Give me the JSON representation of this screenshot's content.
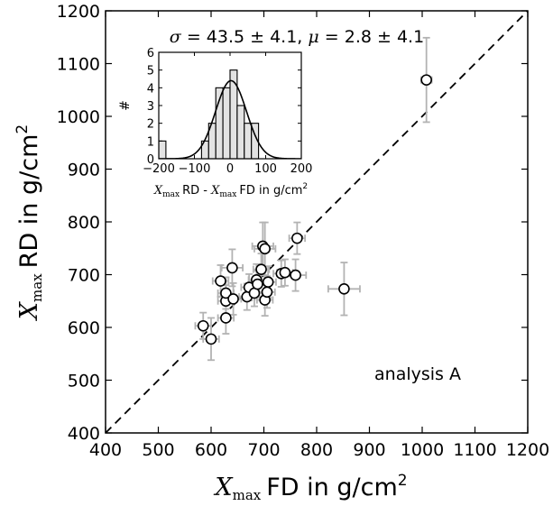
{
  "chart_data": [
    {
      "type": "scatter",
      "xlabel": {
        "symbol": "X",
        "sub": "max",
        "rest": "FD in g/cm",
        "sup": "2"
      },
      "ylabel": {
        "symbol": "X",
        "sub": "max",
        "rest": "RD in g/cm",
        "sup": "2"
      },
      "xlim": [
        400,
        1200
      ],
      "ylim": [
        400,
        1200
      ],
      "xticks": [
        "400",
        "500",
        "600",
        "700",
        "800",
        "900",
        "1000",
        "1100",
        "1200"
      ],
      "yticks": [
        "400",
        "500",
        "600",
        "700",
        "800",
        "900",
        "1000",
        "1100",
        "1200"
      ],
      "reference_line": "y = x (dashed)",
      "annotation": "analysis A",
      "points": [
        {
          "x": 585,
          "y": 603,
          "xerr": 15,
          "yerr": 25
        },
        {
          "x": 600,
          "y": 578,
          "xerr": 15,
          "yerr": 40
        },
        {
          "x": 618,
          "y": 688,
          "xerr": 15,
          "yerr": 30
        },
        {
          "x": 628,
          "y": 618,
          "xerr": 15,
          "yerr": 30
        },
        {
          "x": 628,
          "y": 650,
          "xerr": 15,
          "yerr": 30
        },
        {
          "x": 628,
          "y": 665,
          "xerr": 15,
          "yerr": 30
        },
        {
          "x": 640,
          "y": 713,
          "xerr": 20,
          "yerr": 35
        },
        {
          "x": 642,
          "y": 654,
          "xerr": 15,
          "yerr": 30
        },
        {
          "x": 668,
          "y": 658,
          "xerr": 15,
          "yerr": 25
        },
        {
          "x": 672,
          "y": 676,
          "xerr": 15,
          "yerr": 25
        },
        {
          "x": 682,
          "y": 665,
          "xerr": 15,
          "yerr": 25
        },
        {
          "x": 686,
          "y": 690,
          "xerr": 15,
          "yerr": 30
        },
        {
          "x": 688,
          "y": 682,
          "xerr": 15,
          "yerr": 25
        },
        {
          "x": 695,
          "y": 710,
          "xerr": 15,
          "yerr": 30
        },
        {
          "x": 698,
          "y": 754,
          "xerr": 20,
          "yerr": 45
        },
        {
          "x": 702,
          "y": 749,
          "xerr": 20,
          "yerr": 50
        },
        {
          "x": 702,
          "y": 652,
          "xerr": 15,
          "yerr": 30
        },
        {
          "x": 706,
          "y": 667,
          "xerr": 15,
          "yerr": 30
        },
        {
          "x": 708,
          "y": 686,
          "xerr": 15,
          "yerr": 30
        },
        {
          "x": 733,
          "y": 702,
          "xerr": 15,
          "yerr": 25
        },
        {
          "x": 740,
          "y": 704,
          "xerr": 15,
          "yerr": 25
        },
        {
          "x": 760,
          "y": 699,
          "xerr": 20,
          "yerr": 30
        },
        {
          "x": 763,
          "y": 769,
          "xerr": 15,
          "yerr": 30
        },
        {
          "x": 852,
          "y": 673,
          "xerr": 30,
          "yerr": 50
        },
        {
          "x": 1008,
          "y": 1069,
          "xerr": 10,
          "yerr": 80
        }
      ]
    },
    {
      "type": "histogram",
      "inset": true,
      "title": {
        "sigma_symbol": "σ",
        "sigma": "43.5 ± 4.1,",
        "mu_symbol": "μ",
        "mu": "2.8 ± 4.1"
      },
      "ylabel": "#",
      "xlabel": {
        "symbol": "X",
        "sub": "max",
        "mid": "RD - ",
        "symbol2": "X",
        "sub2": "max",
        "rest": "FD  in g/cm",
        "sup": "2"
      },
      "xlim": [
        -200,
        200
      ],
      "ylim": [
        0,
        6
      ],
      "xticks": [
        "−200",
        "−100",
        "0",
        "100",
        "200"
      ],
      "yticks": [
        "0",
        "1",
        "2",
        "3",
        "4",
        "5",
        "6"
      ],
      "bin_edges": [
        -200,
        -180,
        -160,
        -140,
        -120,
        -100,
        -80,
        -60,
        -40,
        -20,
        0,
        20,
        40,
        60,
        80,
        100
      ],
      "counts": [
        1,
        0,
        0,
        0,
        0,
        0,
        1,
        2,
        4,
        4,
        5,
        3,
        2,
        2,
        0
      ],
      "fit": {
        "type": "gaussian",
        "sigma": 43.5,
        "mu": 2.8,
        "amplitude": 4.4
      }
    }
  ]
}
